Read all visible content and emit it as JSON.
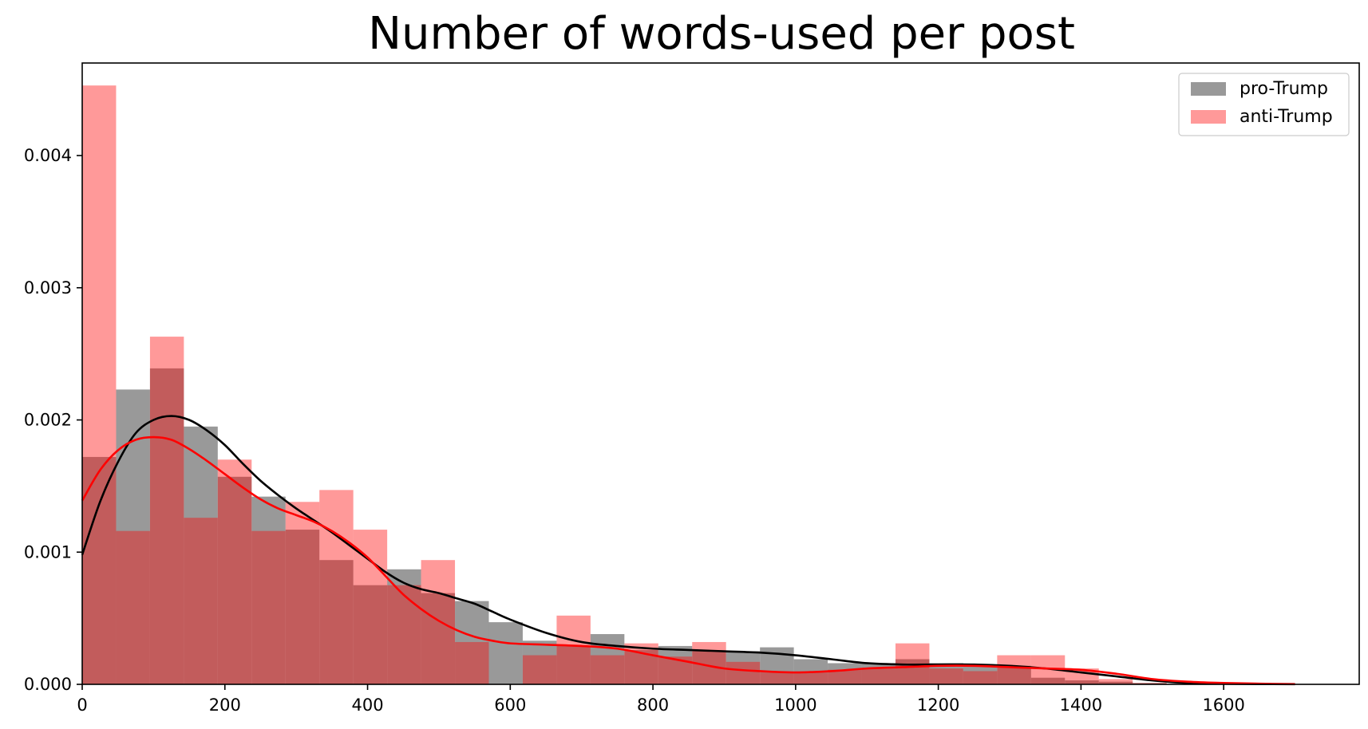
{
  "chart_data": {
    "type": "histogram",
    "title": "Number of words-used per post",
    "xlabel": "",
    "ylabel": "",
    "xlim": [
      0,
      1790
    ],
    "ylim": [
      0,
      0.0047
    ],
    "x_ticks": [
      0,
      200,
      400,
      600,
      800,
      1000,
      1200,
      1400,
      1600
    ],
    "y_ticks": [
      0.0,
      0.001,
      0.002,
      0.003,
      0.004
    ],
    "y_tick_labels": [
      "0.000",
      "0.001",
      "0.002",
      "0.003",
      "0.004"
    ],
    "grid": false,
    "legend_position": "top-right",
    "series": [
      {
        "name": "pro-Trump",
        "color": "#808080",
        "opacity": 0.8,
        "bin_edges": [
          0,
          47.5,
          95,
          142.5,
          190,
          237.5,
          285,
          332.5,
          380,
          427.5,
          475,
          522.5,
          570,
          617.5,
          665,
          712.5,
          760,
          807.5,
          855,
          902.5,
          950,
          997.5,
          1045,
          1092.5,
          1140,
          1187.5,
          1235,
          1282.5,
          1330,
          1377.5,
          1425,
          1472.5,
          1520
        ],
        "densities": [
          0.00172,
          0.00223,
          0.00239,
          0.00195,
          0.00157,
          0.00142,
          0.00117,
          0.00094,
          0.00075,
          0.00087,
          0.00069,
          0.00063,
          0.00047,
          0.00033,
          0.00029,
          0.00038,
          0.00026,
          0.00029,
          0.00025,
          0.00025,
          0.00028,
          0.00019,
          0.00016,
          0.00016,
          0.00019,
          0.00016,
          0.00015,
          0.00014,
          5e-05,
          3e-05,
          2e-05,
          1e-05
        ]
      },
      {
        "name": "anti-Trump",
        "color": "#ff0000",
        "opacity": 0.4,
        "bin_edges": [
          0,
          47.5,
          95,
          142.5,
          190,
          237.5,
          285,
          332.5,
          380,
          427.5,
          475,
          522.5,
          570,
          617.5,
          665,
          712.5,
          760,
          807.5,
          855,
          902.5,
          950,
          997.5,
          1045,
          1092.5,
          1140,
          1187.5,
          1235,
          1282.5,
          1330,
          1377.5,
          1425,
          1472.5,
          1520,
          1567.5,
          1615,
          1662.5,
          1710
        ],
        "densities": [
          0.00453,
          0.00116,
          0.00263,
          0.00126,
          0.0017,
          0.00116,
          0.00138,
          0.00147,
          0.00117,
          0.00075,
          0.00094,
          0.00032,
          0.0,
          0.00022,
          0.00052,
          0.00022,
          0.00031,
          0.00021,
          0.00032,
          0.00017,
          9e-05,
          9e-05,
          0.00011,
          0.00012,
          0.00031,
          0.00012,
          0.0001,
          0.00022,
          0.00022,
          0.00012,
          4e-05,
          1e-05,
          0.0,
          0.0,
          0.0,
          0.0
        ]
      }
    ],
    "kde": [
      {
        "name": "pro-Trump",
        "color": "#000000",
        "x": [
          0,
          25,
          50,
          75,
          100,
          125,
          150,
          175,
          200,
          225,
          250,
          275,
          300,
          325,
          350,
          375,
          400,
          425,
          450,
          475,
          500,
          525,
          550,
          575,
          600,
          650,
          700,
          750,
          800,
          850,
          900,
          950,
          1000,
          1050,
          1100,
          1150,
          1200,
          1250,
          1300,
          1350,
          1400,
          1450,
          1500,
          1550,
          1600,
          1650,
          1700
        ],
        "y": [
          0.00098,
          0.00138,
          0.00168,
          0.0019,
          0.002,
          0.00203,
          0.002,
          0.00192,
          0.00181,
          0.00167,
          0.00154,
          0.00143,
          0.00133,
          0.00124,
          0.00115,
          0.00105,
          0.00095,
          0.00085,
          0.00077,
          0.00072,
          0.00069,
          0.00065,
          0.00061,
          0.00055,
          0.00049,
          0.00039,
          0.00032,
          0.00029,
          0.00027,
          0.00026,
          0.00025,
          0.00024,
          0.00022,
          0.00019,
          0.00016,
          0.00015,
          0.00015,
          0.00015,
          0.00014,
          0.00012,
          9e-05,
          6e-05,
          3e-05,
          1e-05,
          5e-06,
          2e-06,
          1e-06
        ]
      },
      {
        "name": "anti-Trump",
        "color": "#ff0000",
        "x": [
          0,
          25,
          50,
          75,
          100,
          125,
          150,
          175,
          200,
          225,
          250,
          275,
          300,
          325,
          350,
          375,
          400,
          425,
          450,
          475,
          500,
          525,
          550,
          575,
          600,
          650,
          700,
          750,
          800,
          850,
          900,
          950,
          1000,
          1050,
          1100,
          1150,
          1200,
          1250,
          1300,
          1350,
          1400,
          1450,
          1500,
          1550,
          1600,
          1650,
          1700
        ],
        "y": [
          0.00139,
          0.00162,
          0.00177,
          0.00185,
          0.00187,
          0.00185,
          0.00178,
          0.00169,
          0.00159,
          0.00149,
          0.0014,
          0.00133,
          0.00128,
          0.00123,
          0.00116,
          0.00107,
          0.00096,
          0.00082,
          0.00068,
          0.00057,
          0.00048,
          0.00041,
          0.00036,
          0.00033,
          0.00031,
          0.0003,
          0.00029,
          0.00027,
          0.00022,
          0.00017,
          0.00012,
          0.0001,
          9e-05,
          0.0001,
          0.00012,
          0.00013,
          0.00014,
          0.00014,
          0.00013,
          0.00012,
          0.00011,
          8e-05,
          4e-05,
          2e-05,
          1e-05,
          5e-06,
          2e-06
        ]
      }
    ]
  },
  "legend": {
    "items": [
      {
        "label": "pro-Trump",
        "color": "#808080",
        "opacity": 0.8
      },
      {
        "label": "anti-Trump",
        "color": "#ff0000",
        "opacity": 0.4
      }
    ]
  }
}
